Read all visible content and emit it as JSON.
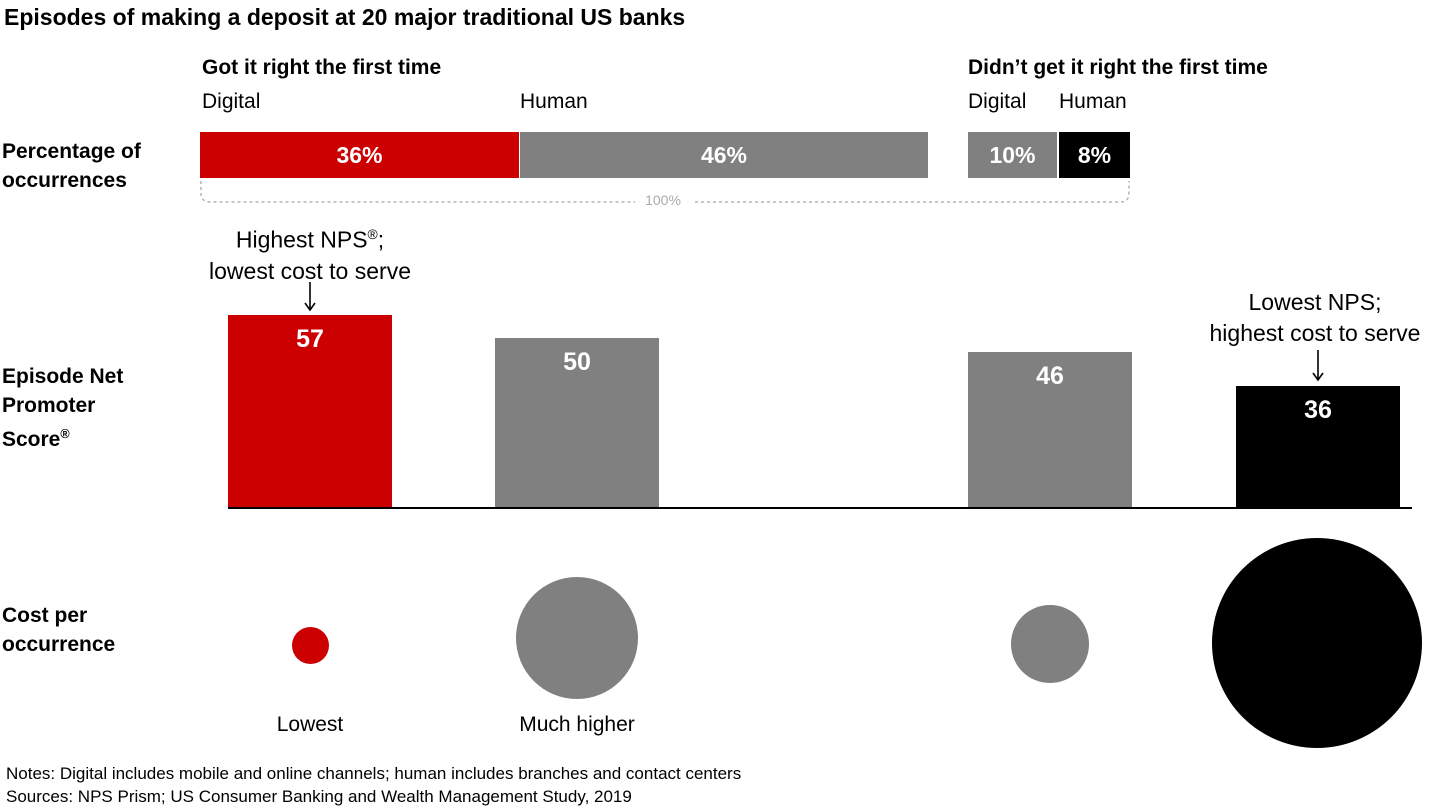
{
  "title": "Episodes of making a deposit at 20 major traditional US banks",
  "groups": {
    "first_time": "Got it right the first time",
    "not_first_time": "Didn’t get it right the first time"
  },
  "subgroups": {
    "digital_1": "Digital",
    "human_1": "Human",
    "digital_2": "Digital",
    "human_2": "Human"
  },
  "row_labels": {
    "percentage": "Percentage of occurrences",
    "nps_1": "Episode Net",
    "nps_2": "Promoter",
    "nps_3": "Score",
    "cost": "Cost per occurrence"
  },
  "total_label": "100%",
  "annotations": {
    "highest_1": "Highest NPS",
    "highest_1_suffix": ";",
    "highest_2": "lowest cost to serve",
    "lowest_1": "Lowest NPS;",
    "lowest_2": "highest cost to serve"
  },
  "cost_labels": {
    "digital_first": "Lowest",
    "human_first": "Much higher"
  },
  "notes": {
    "line1": "Notes: Digital includes mobile and online channels; human includes branches and contact centers",
    "line2": "Sources: NPS Prism; US Consumer Banking and Wealth Management Study, 2019"
  },
  "colors": {
    "red": "#cc0000",
    "gray": "#808080",
    "black": "#000000",
    "bracket": "#b3b3b3"
  },
  "chart_data": [
    {
      "type": "bar",
      "title": "Percentage of occurrences",
      "categories": [
        "Got it right the first time - Digital",
        "Got it right the first time - Human",
        "Didn’t get it right the first time - Digital",
        "Didn’t get it right the first time - Human"
      ],
      "values": [
        36,
        46,
        10,
        8
      ],
      "labels": [
        "36%",
        "46%",
        "10%",
        "8%"
      ],
      "total": "100%"
    },
    {
      "type": "bar",
      "title": "Episode Net Promoter Score",
      "categories": [
        "Got it right the first time - Digital",
        "Got it right the first time - Human",
        "Didn’t get it right the first time - Digital",
        "Didn’t get it right the first time - Human"
      ],
      "values": [
        57,
        50,
        46,
        36
      ],
      "labels": [
        "57",
        "50",
        "46",
        "36"
      ]
    },
    {
      "type": "scatter",
      "title": "Cost per occurrence",
      "categories": [
        "Got it right the first time - Digital",
        "Got it right the first time - Human",
        "Didn’t get it right the first time - Digital",
        "Didn’t get it right the first time - Human"
      ],
      "relative_size": [
        1,
        3.3,
        2.1,
        5.7
      ],
      "labels": [
        "Lowest",
        "Much higher",
        "",
        ""
      ]
    }
  ]
}
